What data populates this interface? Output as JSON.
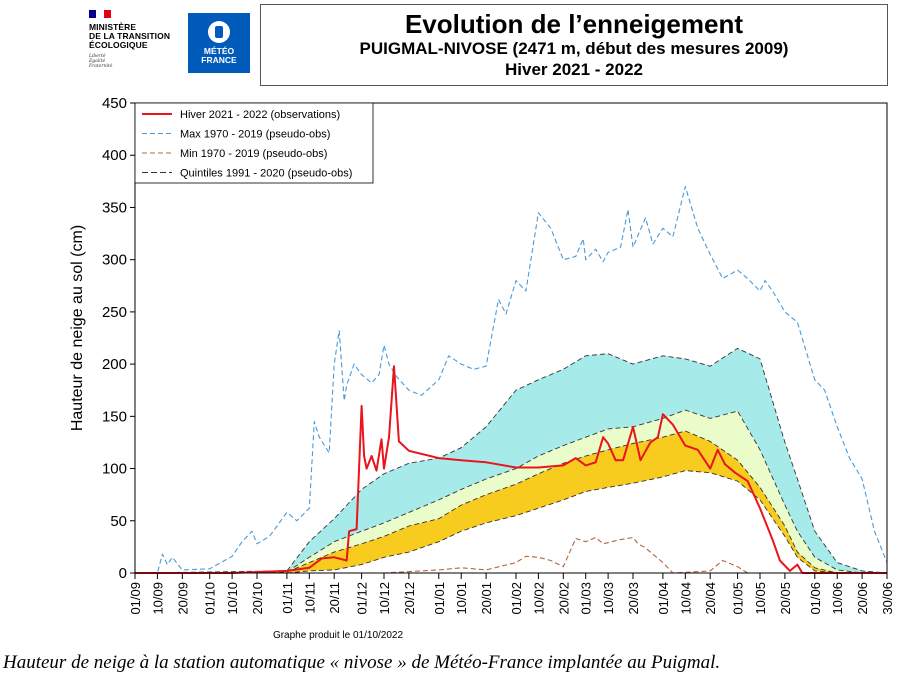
{
  "header": {
    "ministry_lines": "MINISTÈRE\nDE LA TRANSITION\nÉCOLOGIQUE",
    "motto_lines": "Liberté\nÉgalité\nFraternité",
    "flag_colors": [
      "#000091",
      "#ffffff",
      "#E1000F"
    ],
    "meteo_logo_text": "MÉTÉO\nFRANCE",
    "meteo_logo_color": "#005BBB"
  },
  "title": {
    "main": "Evolution de l’enneigement",
    "station": "PUIGMAL-NIVOSE (2471 m, début des mesures 2009)",
    "season": "Hiver 2021 - 2022"
  },
  "produced_label": "Graphe produit le 01/10/2022",
  "caption": "Hauteur de neige à la station automatique « nivose » de Météo-France implantée au Puigmal.",
  "chart_data": {
    "type": "area",
    "ylabel": "Hauteur de neige au sol (cm)",
    "ylim": [
      0,
      450
    ],
    "yticks": [
      0,
      50,
      100,
      150,
      200,
      250,
      300,
      350,
      400,
      450
    ],
    "xlim": [
      "01/09",
      "30/06"
    ],
    "xticks": [
      "01/09",
      "10/09",
      "20/09",
      "01/10",
      "10/10",
      "20/10",
      "01/11",
      "10/11",
      "20/11",
      "01/12",
      "10/12",
      "20/12",
      "01/01",
      "10/01",
      "20/01",
      "01/02",
      "10/02",
      "20/02",
      "01/03",
      "10/03",
      "20/03",
      "01/04",
      "10/04",
      "20/04",
      "01/05",
      "10/05",
      "20/05",
      "01/06",
      "10/06",
      "20/06",
      "30/06"
    ],
    "legend_position": "top-left",
    "colors": {
      "observations": "#e8151b",
      "max": "#4a9ad8",
      "min": "#b5653b",
      "quintiles": "#333333",
      "band_q1_q2": "#f7cc1f",
      "band_q2_q3": "#eafcc9",
      "band_q3_q4": "#a6eaea"
    },
    "series": [
      {
        "name": "Hiver 2021 - 2022 (observations)",
        "style": "solid",
        "points": [
          [
            "01/09",
            0
          ],
          [
            "20/09",
            0
          ],
          [
            "10/10",
            0
          ],
          [
            "01/11",
            2
          ],
          [
            "10/11",
            5
          ],
          [
            "15/11",
            14
          ],
          [
            "20/11",
            15
          ],
          [
            "25/11",
            12
          ],
          [
            "26/11",
            40
          ],
          [
            "29/11",
            42
          ],
          [
            "01/12",
            160
          ],
          [
            "02/12",
            112
          ],
          [
            "03/12",
            100
          ],
          [
            "05/12",
            112
          ],
          [
            "07/12",
            98
          ],
          [
            "09/12",
            128
          ],
          [
            "10/12",
            100
          ],
          [
            "12/12",
            130
          ],
          [
            "14/12",
            198
          ],
          [
            "16/12",
            126
          ],
          [
            "20/12",
            117
          ],
          [
            "01/01",
            110
          ],
          [
            "10/01",
            108
          ],
          [
            "20/01",
            106
          ],
          [
            "01/02",
            101
          ],
          [
            "10/02",
            101
          ],
          [
            "20/02",
            103
          ],
          [
            "25/02",
            110
          ],
          [
            "01/03",
            103
          ],
          [
            "05/03",
            106
          ],
          [
            "08/03",
            130
          ],
          [
            "10/03",
            124
          ],
          [
            "13/03",
            108
          ],
          [
            "16/03",
            108
          ],
          [
            "20/03",
            140
          ],
          [
            "23/03",
            108
          ],
          [
            "27/03",
            125
          ],
          [
            "30/03",
            130
          ],
          [
            "01/04",
            152
          ],
          [
            "05/04",
            142
          ],
          [
            "10/04",
            122
          ],
          [
            "15/04",
            118
          ],
          [
            "20/04",
            100
          ],
          [
            "23/04",
            118
          ],
          [
            "26/04",
            104
          ],
          [
            "30/04",
            96
          ],
          [
            "05/05",
            88
          ],
          [
            "10/05",
            62
          ],
          [
            "15/05",
            32
          ],
          [
            "18/05",
            12
          ],
          [
            "22/05",
            2
          ],
          [
            "25/05",
            8
          ],
          [
            "27/05",
            0
          ],
          [
            "10/06",
            0
          ],
          [
            "20/06",
            0
          ],
          [
            "30/06",
            0
          ]
        ]
      },
      {
        "name": "Max 1970 - 2019 (pseudo-obs)",
        "style": "dashed",
        "points": [
          [
            "01/09",
            0
          ],
          [
            "10/09",
            0
          ],
          [
            "12/09",
            18
          ],
          [
            "14/09",
            8
          ],
          [
            "16/09",
            15
          ],
          [
            "20/09",
            3
          ],
          [
            "01/10",
            4
          ],
          [
            "10/10",
            16
          ],
          [
            "14/10",
            30
          ],
          [
            "18/10",
            40
          ],
          [
            "20/10",
            28
          ],
          [
            "25/10",
            35
          ],
          [
            "01/11",
            58
          ],
          [
            "05/11",
            50
          ],
          [
            "10/11",
            62
          ],
          [
            "12/11",
            145
          ],
          [
            "14/11",
            130
          ],
          [
            "18/11",
            115
          ],
          [
            "20/11",
            200
          ],
          [
            "22/11",
            232
          ],
          [
            "24/11",
            165
          ],
          [
            "25/11",
            180
          ],
          [
            "28/11",
            200
          ],
          [
            "01/12",
            190
          ],
          [
            "05/12",
            182
          ],
          [
            "08/12",
            190
          ],
          [
            "10/12",
            218
          ],
          [
            "12/12",
            200
          ],
          [
            "15/12",
            188
          ],
          [
            "20/12",
            175
          ],
          [
            "25/12",
            170
          ],
          [
            "01/01",
            185
          ],
          [
            "05/01",
            208
          ],
          [
            "10/01",
            200
          ],
          [
            "15/01",
            195
          ],
          [
            "20/01",
            198
          ],
          [
            "25/01",
            262
          ],
          [
            "28/01",
            248
          ],
          [
            "01/02",
            280
          ],
          [
            "05/02",
            270
          ],
          [
            "10/02",
            345
          ],
          [
            "15/02",
            330
          ],
          [
            "20/02",
            300
          ],
          [
            "25/02",
            303
          ],
          [
            "28/02",
            320
          ],
          [
            "01/03",
            300
          ],
          [
            "05/03",
            310
          ],
          [
            "08/03",
            298
          ],
          [
            "10/03",
            307
          ],
          [
            "15/03",
            312
          ],
          [
            "18/03",
            348
          ],
          [
            "20/03",
            312
          ],
          [
            "25/03",
            340
          ],
          [
            "28/03",
            315
          ],
          [
            "01/04",
            330
          ],
          [
            "05/04",
            322
          ],
          [
            "10/04",
            370
          ],
          [
            "15/04",
            330
          ],
          [
            "20/04",
            305
          ],
          [
            "25/04",
            282
          ],
          [
            "01/05",
            290
          ],
          [
            "05/05",
            282
          ],
          [
            "10/05",
            270
          ],
          [
            "12/05",
            280
          ],
          [
            "15/05",
            270
          ],
          [
            "20/05",
            250
          ],
          [
            "25/05",
            240
          ],
          [
            "01/06",
            185
          ],
          [
            "05/06",
            175
          ],
          [
            "10/06",
            140
          ],
          [
            "15/06",
            110
          ],
          [
            "20/06",
            90
          ],
          [
            "25/06",
            40
          ],
          [
            "30/06",
            10
          ]
        ]
      },
      {
        "name": "Min 1970 - 2019 (pseudo-obs)",
        "style": "dashed",
        "points": [
          [
            "01/09",
            0
          ],
          [
            "10/12",
            0
          ],
          [
            "01/01",
            3
          ],
          [
            "10/01",
            5
          ],
          [
            "20/01",
            3
          ],
          [
            "01/02",
            10
          ],
          [
            "05/02",
            16
          ],
          [
            "10/02",
            15
          ],
          [
            "15/02",
            12
          ],
          [
            "20/02",
            6
          ],
          [
            "25/02",
            33
          ],
          [
            "01/03",
            30
          ],
          [
            "05/03",
            34
          ],
          [
            "08/03",
            28
          ],
          [
            "15/03",
            32
          ],
          [
            "20/03",
            34
          ],
          [
            "22/03",
            28
          ],
          [
            "25/03",
            24
          ],
          [
            "01/04",
            10
          ],
          [
            "05/04",
            0
          ],
          [
            "20/04",
            2
          ],
          [
            "25/04",
            12
          ],
          [
            "01/05",
            6
          ],
          [
            "05/05",
            0
          ],
          [
            "30/06",
            0
          ]
        ]
      }
    ],
    "quintiles": {
      "name": "Quintiles 1991 - 2020 (pseudo-obs)",
      "x": [
        "01/09",
        "01/11",
        "10/11",
        "20/11",
        "01/12",
        "10/12",
        "20/12",
        "01/01",
        "10/01",
        "20/01",
        "01/02",
        "10/02",
        "20/02",
        "01/03",
        "10/03",
        "20/03",
        "01/04",
        "10/04",
        "20/04",
        "01/05",
        "10/05",
        "20/05",
        "25/05",
        "01/06",
        "10/06",
        "20/06",
        "30/06"
      ],
      "q1": [
        0,
        0,
        2,
        3,
        8,
        15,
        20,
        30,
        40,
        48,
        55,
        62,
        70,
        78,
        82,
        86,
        92,
        98,
        96,
        88,
        70,
        35,
        15,
        2,
        0,
        0,
        0
      ],
      "q2": [
        0,
        1,
        10,
        20,
        28,
        35,
        45,
        52,
        65,
        75,
        85,
        95,
        105,
        112,
        118,
        124,
        130,
        136,
        126,
        108,
        82,
        45,
        20,
        5,
        0,
        0,
        0
      ],
      "q3": [
        0,
        1,
        15,
        30,
        40,
        48,
        58,
        70,
        80,
        90,
        100,
        112,
        122,
        130,
        138,
        140,
        148,
        156,
        148,
        155,
        118,
        65,
        40,
        15,
        3,
        0,
        0
      ],
      "q4": [
        0,
        2,
        30,
        52,
        80,
        95,
        105,
        110,
        120,
        140,
        175,
        185,
        195,
        208,
        210,
        200,
        208,
        205,
        198,
        215,
        205,
        125,
        90,
        40,
        10,
        2,
        0
      ]
    }
  }
}
